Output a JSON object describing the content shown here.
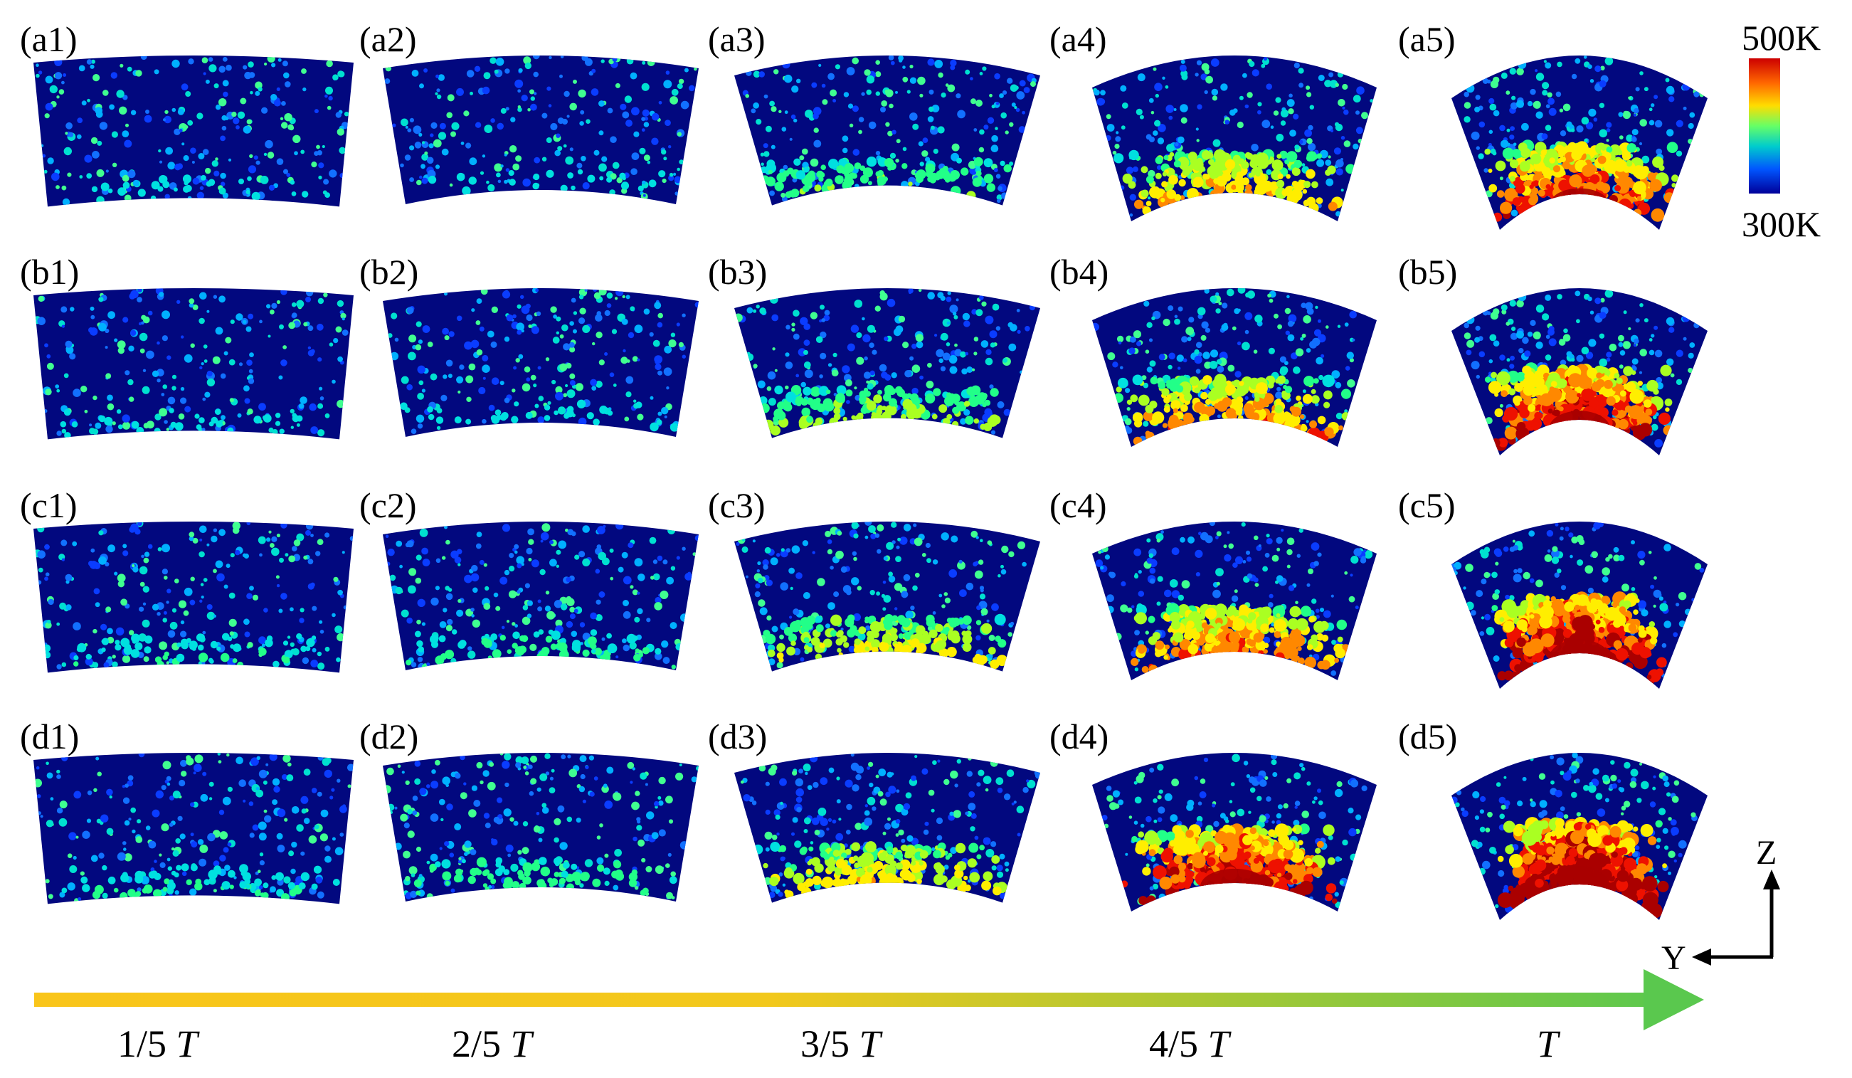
{
  "panels": {
    "rows": [
      "a",
      "b",
      "c",
      "d"
    ],
    "labels": [
      [
        "(a1)",
        "(a2)",
        "(a3)",
        "(a4)",
        "(a5)"
      ],
      [
        "(b1)",
        "(b2)",
        "(b3)",
        "(b4)",
        "(b5)"
      ],
      [
        "(c1)",
        "(c2)",
        "(c3)",
        "(c4)",
        "(c5)"
      ],
      [
        "(d1)",
        "(d2)",
        "(d3)",
        "(d4)",
        "(d5)"
      ]
    ],
    "hot_fraction": [
      [
        0.05,
        0.05,
        0.22,
        0.45,
        0.62
      ],
      [
        0.05,
        0.06,
        0.28,
        0.5,
        0.7
      ],
      [
        0.12,
        0.15,
        0.35,
        0.55,
        0.78
      ],
      [
        0.12,
        0.18,
        0.4,
        0.72,
        0.85
      ]
    ]
  },
  "colorbar": {
    "max_label": "500K",
    "min_label": "300K",
    "colors": [
      "#cc0000",
      "#ff6600",
      "#ffdd00",
      "#66ff66",
      "#00cccc",
      "#0055ff",
      "#000099"
    ]
  },
  "timeline": {
    "labels": [
      {
        "num": "1/5",
        "sym": "T"
      },
      {
        "num": "2/5",
        "sym": "T"
      },
      {
        "num": "3/5",
        "sym": "T"
      },
      {
        "num": "4/5",
        "sym": "T"
      },
      {
        "num": "",
        "sym": "T"
      }
    ],
    "arrow_color_start": "#f9c51a",
    "arrow_color_end": "#5ac84e"
  },
  "axes": {
    "vertical": "Z",
    "horizontal": "Y"
  }
}
